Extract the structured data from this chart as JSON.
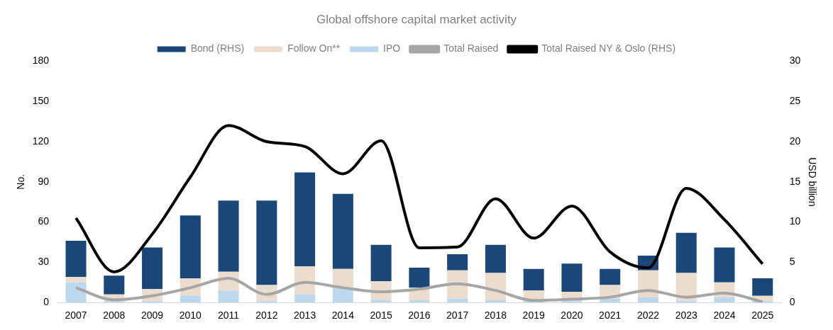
{
  "chart_data": {
    "type": "bar",
    "title": "Global offshore capital market activity",
    "ylabel": "No.",
    "y2label": "USD billion",
    "stacked": true,
    "categories": [
      "2007",
      "2008",
      "2009",
      "2010",
      "2011",
      "2012",
      "2013",
      "2014",
      "2015",
      "2016",
      "2017",
      "2018",
      "2019",
      "2020",
      "2021",
      "2022",
      "2023",
      "2024",
      "2025"
    ],
    "series": [
      {
        "name": "IPO",
        "color": "#bdd7ee",
        "values": [
          15,
          1,
          1,
          5,
          9,
          1,
          6,
          11,
          2,
          2,
          3,
          2,
          1,
          1,
          3,
          4,
          1,
          4,
          1
        ]
      },
      {
        "name": "Follow On**",
        "color": "#ecdccd",
        "values": [
          4,
          5,
          9,
          13,
          14,
          12,
          21,
          14,
          14,
          9,
          21,
          20,
          8,
          7,
          10,
          20,
          21,
          11,
          4
        ]
      },
      {
        "name": "Bond (RHS)",
        "color": "#1a4778",
        "values": [
          27,
          14,
          31,
          47,
          53,
          63,
          70,
          56,
          27,
          15,
          12,
          21,
          16,
          21,
          12,
          11,
          30,
          26,
          13
        ]
      },
      {
        "name": "Total Raised NY & Oslo (RHS)",
        "type": "line",
        "axis": "y2",
        "color": "#000000",
        "values": [
          10.5,
          3.8,
          8.5,
          15.6,
          22,
          20,
          19.4,
          16,
          20.1,
          6.8,
          6.9,
          12.9,
          8,
          12,
          6.3,
          4.3,
          14.2,
          10.3,
          4.8
        ]
      },
      {
        "name": "Total Raised",
        "type": "line",
        "color": "#a6a6a6",
        "values": [
          11,
          2,
          5,
          11,
          18,
          6,
          15,
          11,
          8,
          10,
          14,
          9,
          1.5,
          2.5,
          4,
          9,
          4,
          7,
          0.5
        ]
      }
    ],
    "ylim": [
      0,
      180
    ],
    "yticks": [
      0,
      30,
      60,
      90,
      120,
      150,
      180
    ],
    "y2lim": [
      0,
      30
    ],
    "y2ticks": [
      0,
      5,
      10,
      15,
      20,
      25,
      30
    ],
    "grid": false,
    "legend": "top",
    "marker": "none"
  }
}
